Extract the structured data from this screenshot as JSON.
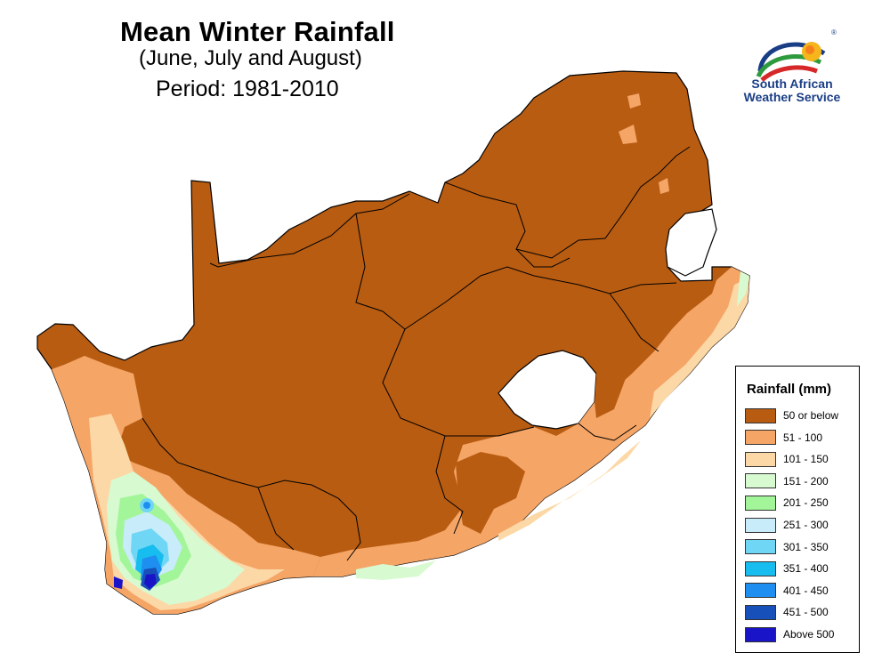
{
  "map": {
    "title": "Mean Winter Rainfall",
    "subtitle": "(June, July and August)",
    "period": "Period: 1981-2010"
  },
  "logo": {
    "line1": "South African",
    "line2": "Weather Service",
    "registered_mark": "®"
  },
  "legend": {
    "title": "Rainfall (mm)",
    "items": [
      {
        "label": "50 or below",
        "color": "#b85c12"
      },
      {
        "label": "51 - 100",
        "color": "#f5a566"
      },
      {
        "label": "101 - 150",
        "color": "#fcd8a6"
      },
      {
        "label": "151 - 200",
        "color": "#d8fad0"
      },
      {
        "label": "201 - 250",
        "color": "#a3f59a"
      },
      {
        "label": "251 - 300",
        "color": "#c8ecfa"
      },
      {
        "label": "301 - 350",
        "color": "#6fd6f5"
      },
      {
        "label": "351 - 400",
        "color": "#18bdf0"
      },
      {
        "label": "401 - 450",
        "color": "#1e8ef0"
      },
      {
        "label": "451 - 500",
        "color": "#1650b8"
      },
      {
        "label": "Above 500",
        "color": "#1a14c8"
      }
    ]
  }
}
